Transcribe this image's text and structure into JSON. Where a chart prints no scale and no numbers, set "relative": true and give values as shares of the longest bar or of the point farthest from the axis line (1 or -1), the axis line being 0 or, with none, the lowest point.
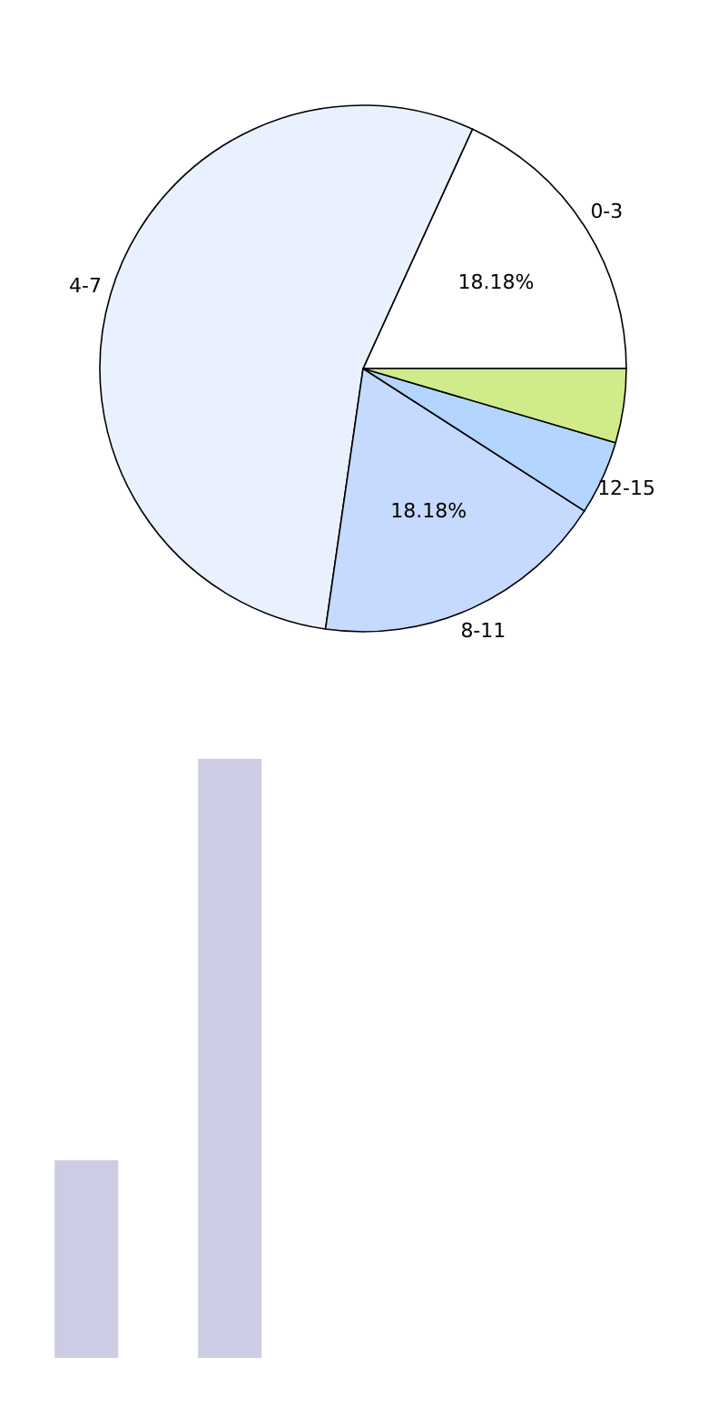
{
  "chart_data": [
    {
      "type": "pie",
      "categories": [
        "0-3",
        "4-7",
        "8-11",
        "12-15",
        null
      ],
      "values": [
        18.18,
        54.54,
        18.18,
        4.55,
        4.55
      ],
      "colors": [
        "#ffffff",
        "#eaf1fe",
        "#c6d9fe",
        "#b3d5fe",
        "#d0ec8a"
      ],
      "value_labels": [
        "18.18%",
        null,
        "18.18%",
        null,
        null
      ]
    },
    {
      "type": "bar",
      "relative": true,
      "categories": [
        null,
        null
      ],
      "values": [
        0.33,
        1
      ],
      "color": "#cccce4"
    }
  ]
}
